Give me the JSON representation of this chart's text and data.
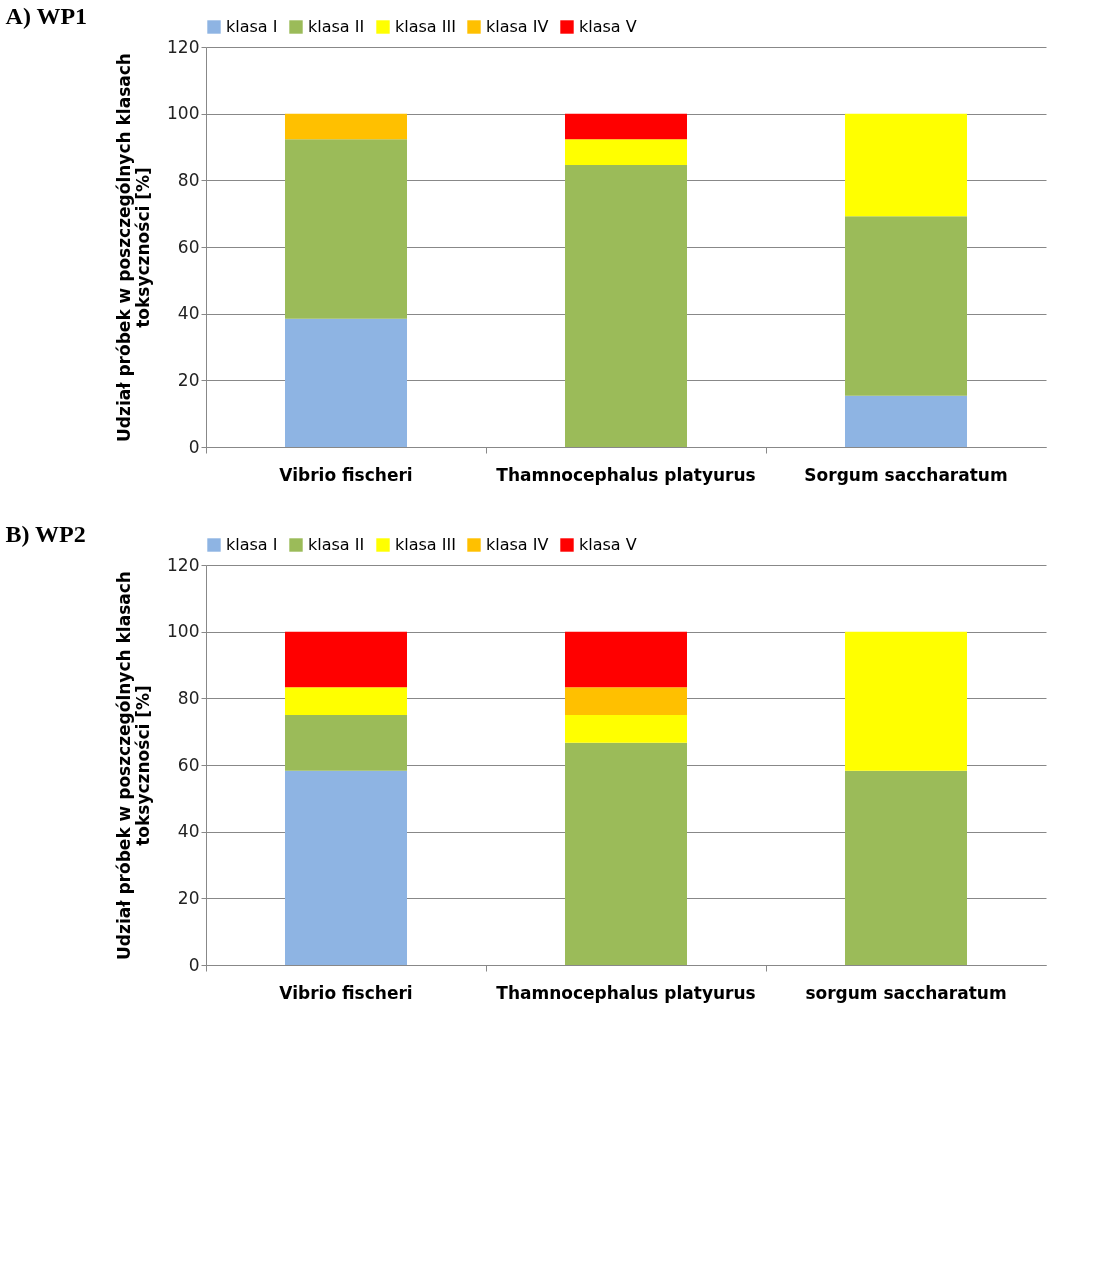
{
  "chart_data": [
    {
      "type": "bar",
      "title": "A)  WP1",
      "ylabel": "Udział próbek w poszczególnych klasach toksyczności [%]",
      "stacked": true,
      "legend": "top",
      "grid": "y",
      "categories": [
        "Vibrio fischeri",
        "Thamnocephalus platyurus",
        "Sorgum saccharatum"
      ],
      "ylim": [
        0,
        120
      ],
      "yticks": [
        0,
        20,
        40,
        60,
        80,
        100,
        120
      ],
      "series": [
        {
          "name": "klasa I",
          "color": "#8eb4e3",
          "values": [
            38.5,
            null,
            15.4
          ]
        },
        {
          "name": "klasa II",
          "color": "#9bbb59",
          "values": [
            53.8,
            84.6,
            53.8
          ]
        },
        {
          "name": "klasa III",
          "color": "#ffff00",
          "values": [
            null,
            7.7,
            30.8
          ]
        },
        {
          "name": "klasa IV",
          "color": "#ffc000",
          "values": [
            7.7,
            null,
            null
          ]
        },
        {
          "name": "klasa V",
          "color": "#ff0000",
          "values": [
            null,
            7.7,
            null
          ]
        }
      ]
    },
    {
      "type": "bar",
      "title": "B)  WP2",
      "ylabel": "Udział próbek w poszczególnych klasach toksyczności [%]",
      "stacked": true,
      "legend": "top",
      "grid": "y",
      "categories": [
        "Vibrio fischeri",
        "Thamnocephalus platyurus",
        "sorgum saccharatum"
      ],
      "ylim": [
        0,
        120
      ],
      "yticks": [
        0,
        20,
        40,
        60,
        80,
        100,
        120
      ],
      "series": [
        {
          "name": "klasa I",
          "color": "#8eb4e3",
          "values": [
            58.3,
            null,
            null
          ]
        },
        {
          "name": "klasa II",
          "color": "#9bbb59",
          "values": [
            16.7,
            66.7,
            58.3
          ]
        },
        {
          "name": "klasa III",
          "color": "#ffff00",
          "values": [
            8.3,
            8.3,
            41.7
          ]
        },
        {
          "name": "klasa IV",
          "color": "#ffc000",
          "values": [
            null,
            8.3,
            null
          ]
        },
        {
          "name": "klasa V",
          "color": "#ff0000",
          "values": [
            16.7,
            16.7,
            null
          ]
        }
      ]
    }
  ]
}
